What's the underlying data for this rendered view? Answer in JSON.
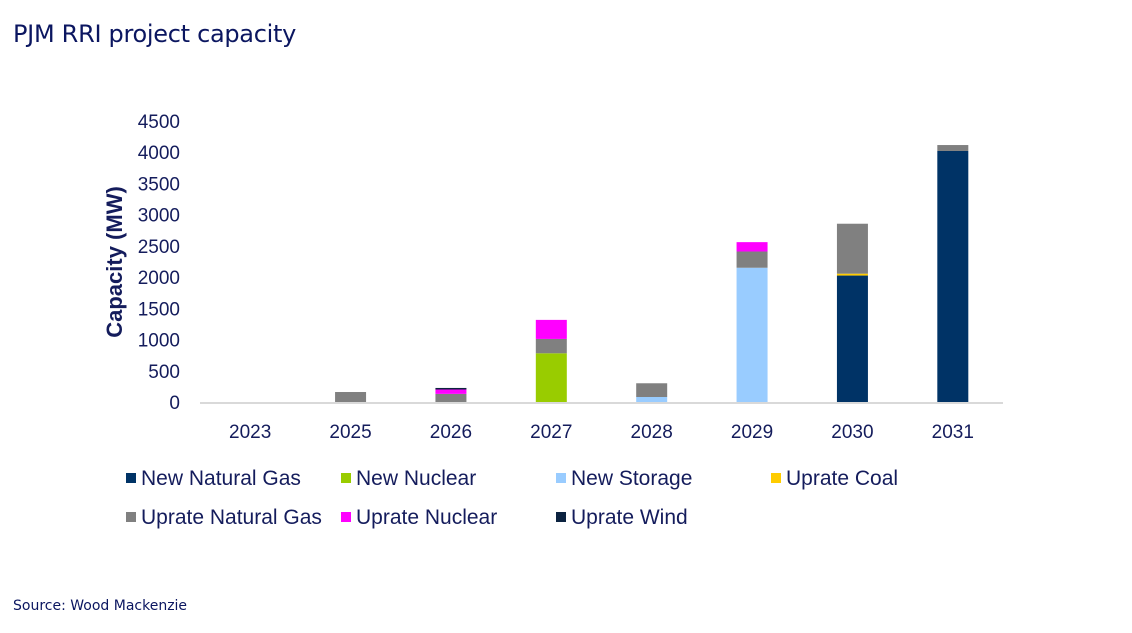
{
  "title": "PJM RRI project capacity",
  "source": "Source: Wood Mackenzie",
  "chart_data": {
    "type": "bar",
    "stacked": true,
    "title": "PJM RRI project capacity",
    "xlabel": "",
    "ylabel": "Capacity (MW)",
    "ylim": [
      0,
      4500
    ],
    "yticks": [
      0,
      500,
      1000,
      1500,
      2000,
      2500,
      3000,
      3500,
      4000,
      4500
    ],
    "grid": false,
    "legend_position": "bottom",
    "categories": [
      "2023",
      "2025",
      "2026",
      "2027",
      "2028",
      "2029",
      "2030",
      "2031"
    ],
    "series": [
      {
        "name": "New Natural Gas",
        "color": "#003366",
        "values": [
          0,
          0,
          0,
          0,
          0,
          0,
          2025,
          4020
        ]
      },
      {
        "name": "New Nuclear",
        "color": "#99cc00",
        "values": [
          0,
          0,
          0,
          780,
          0,
          0,
          0,
          0
        ]
      },
      {
        "name": "New Storage",
        "color": "#99ccff",
        "values": [
          0,
          0,
          0,
          0,
          80,
          2150,
          0,
          0
        ]
      },
      {
        "name": "Uprate Coal",
        "color": "#ffcc00",
        "values": [
          0,
          0,
          0,
          0,
          0,
          0,
          30,
          0
        ]
      },
      {
        "name": "Uprate Natural Gas",
        "color": "#808080",
        "values": [
          0,
          160,
          130,
          230,
          220,
          260,
          800,
          95
        ]
      },
      {
        "name": "Uprate Nuclear",
        "color": "#ff00ff",
        "values": [
          0,
          0,
          70,
          305,
          0,
          150,
          0,
          0
        ]
      },
      {
        "name": "Uprate Wind",
        "color": "#0c2340",
        "values": [
          0,
          0,
          25,
          0,
          0,
          0,
          0,
          0
        ]
      }
    ]
  }
}
